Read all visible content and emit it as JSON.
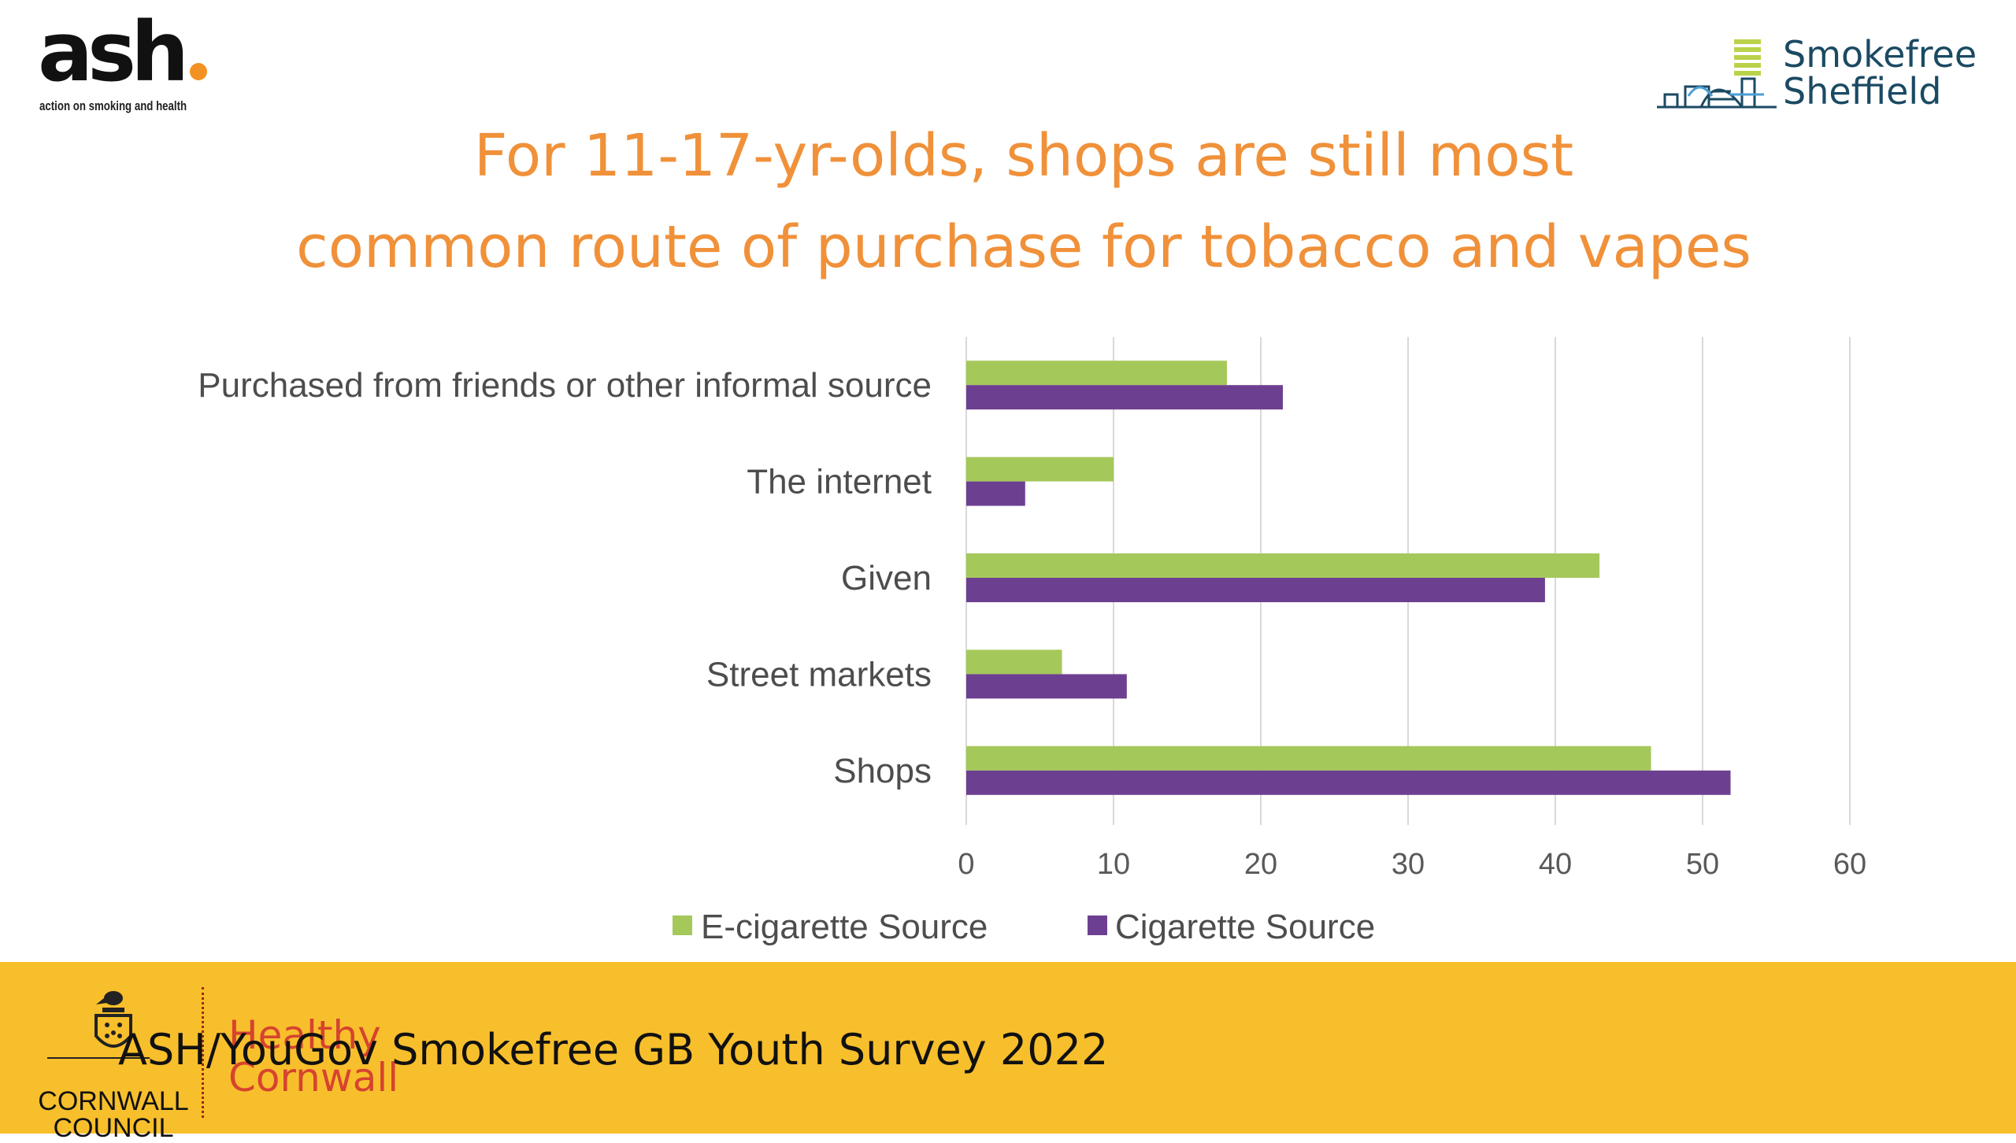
{
  "logos": {
    "ash": {
      "word": "ash",
      "tagline": "action on smoking and health"
    },
    "smokefree": {
      "line1": "Smokefree",
      "line2": "Sheffield"
    },
    "cornwall": {
      "line1": "CORNWALL",
      "line2": "COUNCIL",
      "partner_line1": "Healthy",
      "partner_line2": "Cornwall"
    }
  },
  "title": {
    "line1": "For 11-17-yr-olds, shops are still most",
    "line2": "common route of purchase for tobacco and vapes"
  },
  "footer": {
    "source": "ASH/YouGov Smokefree GB Youth Survey 2022"
  },
  "colors": {
    "title": "#f0913a",
    "footer_bg": "#f8bf2c",
    "ecig": "#a5c85a",
    "cig": "#6d3f91"
  },
  "chart_data": {
    "type": "bar",
    "orientation": "horizontal",
    "categories": [
      "Purchased from friends or other informal source",
      "The internet",
      "Given",
      "Street markets",
      "Shops"
    ],
    "series": [
      {
        "name": "E-cigarette Source",
        "color": "#a5c85a",
        "values": [
          17.7,
          10,
          43,
          6.5,
          46.5
        ]
      },
      {
        "name": "Cigarette Source",
        "color": "#6d3f91",
        "values": [
          21.5,
          4,
          39.3,
          10.9,
          51.9
        ]
      }
    ],
    "xlim": [
      0,
      60
    ],
    "xticks": [
      0,
      10,
      20,
      30,
      40,
      50,
      60
    ],
    "grid": true,
    "legend_position": "bottom"
  }
}
